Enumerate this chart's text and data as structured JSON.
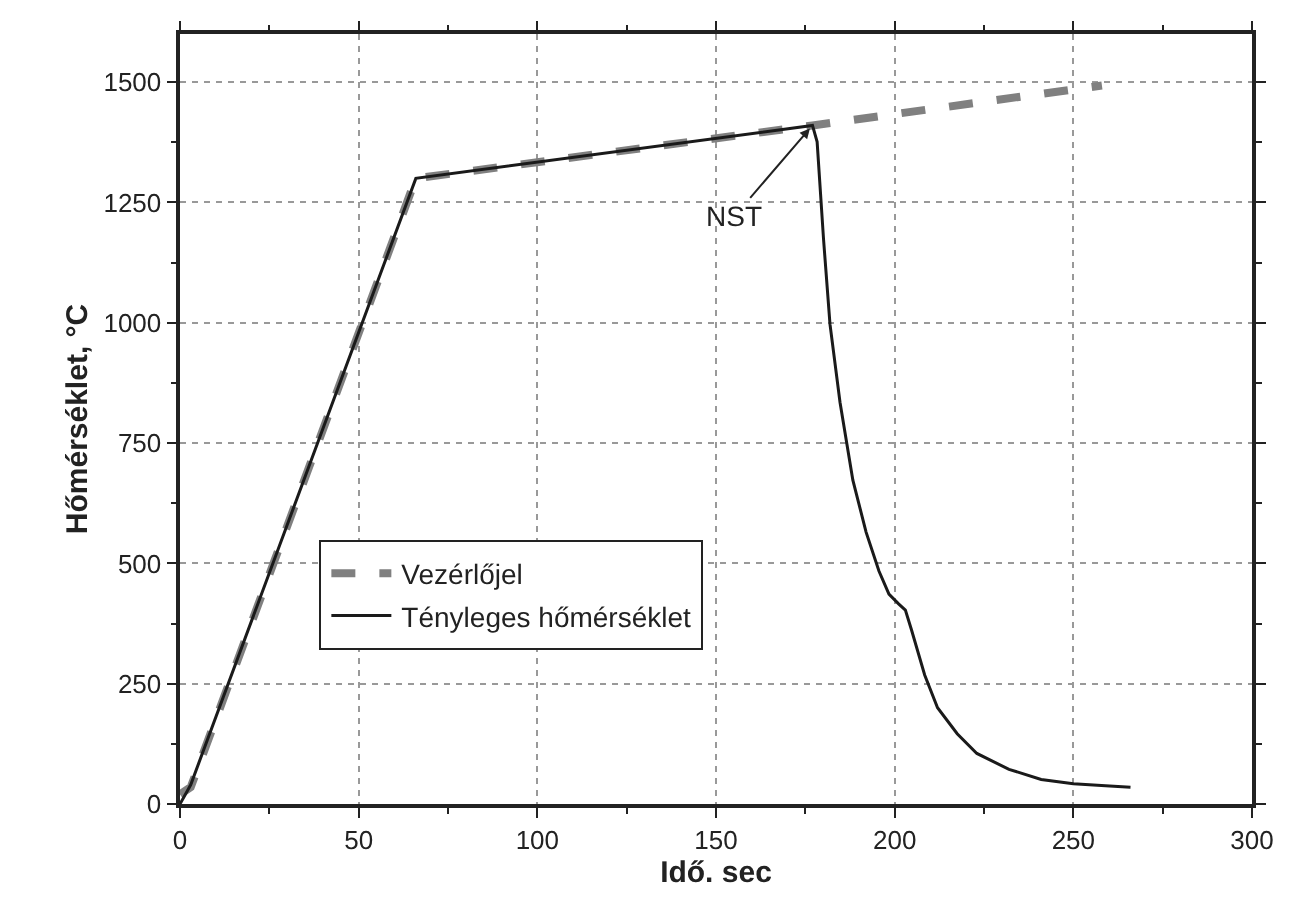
{
  "chart_data": {
    "type": "line",
    "xlabel": "Idő. sec",
    "ylabel": "Hőmérséklet, °C",
    "xlim": [
      0,
      300
    ],
    "xticks": [
      0,
      50,
      100,
      150,
      200,
      250,
      300
    ],
    "ylim": [
      0,
      1600
    ],
    "yticks": [
      0,
      250,
      500,
      750,
      1000,
      1250,
      1500
    ],
    "grid": true,
    "legend": "bottom left",
    "marker": "none",
    "annotations": [
      {
        "text": "NST",
        "x": 177,
        "y": 1410
      }
    ],
    "series": [
      {
        "name": "Vezérlőjel",
        "color": "#808080",
        "line_style": "dashed",
        "x": [
          0,
          3,
          66,
          177,
          258
        ],
        "values": [
          20,
          35,
          1300,
          1410,
          1493
        ]
      },
      {
        "name": "Tényleges hőmérséklet",
        "color": "#1a1a1a",
        "line_style": "solid",
        "x": [
          0,
          3,
          66,
          177,
          178.3,
          180.1,
          181.9,
          184.7,
          188.3,
          192,
          195.6,
          198.4,
          201.1,
          203,
          204.7,
          208.4,
          212,
          217.5,
          223,
          232,
          241,
          250,
          259,
          266
        ],
        "values": [
          0,
          40,
          1300,
          1410,
          1376,
          1173,
          997,
          835,
          673,
          565,
          484,
          436,
          416,
          403,
          362,
          268,
          200,
          146,
          105,
          72,
          51,
          42,
          38,
          35
        ]
      }
    ]
  }
}
